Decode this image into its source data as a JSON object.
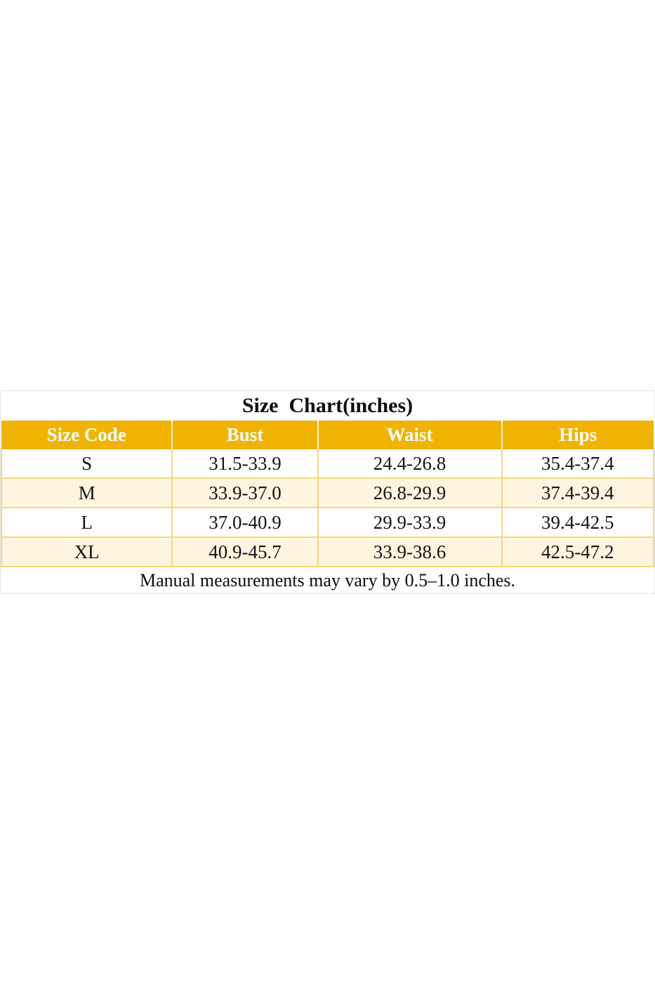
{
  "chart_data": {
    "type": "table",
    "title": "Size  Chart(inches)",
    "columns": [
      "Size Code",
      "Bust",
      "Waist",
      "Hips"
    ],
    "rows": [
      [
        "S",
        "31.5-33.9",
        "24.4-26.8",
        "35.4-37.4"
      ],
      [
        "M",
        "33.9-37.0",
        "26.8-29.9",
        "37.4-39.4"
      ],
      [
        "L",
        "37.0-40.9",
        "29.9-33.9",
        "39.4-42.5"
      ],
      [
        "XL",
        "40.9-45.7",
        "33.9-38.6",
        "42.5-47.2"
      ]
    ],
    "footnote": "Manual measurements may vary by 0.5–1.0 inches.",
    "layout_hints": {
      "header_position": "top",
      "alternating_rows": true,
      "grid": true
    }
  },
  "colors": {
    "header_bg": "#F0B302",
    "header_text": "#FFFFFF",
    "alt_row_bg": "#FDF5DE",
    "grid_line": "#F7D87E",
    "outer_border": "#E7E7E7",
    "body_text": "#141414",
    "page_bg": "#FFFFFF"
  }
}
